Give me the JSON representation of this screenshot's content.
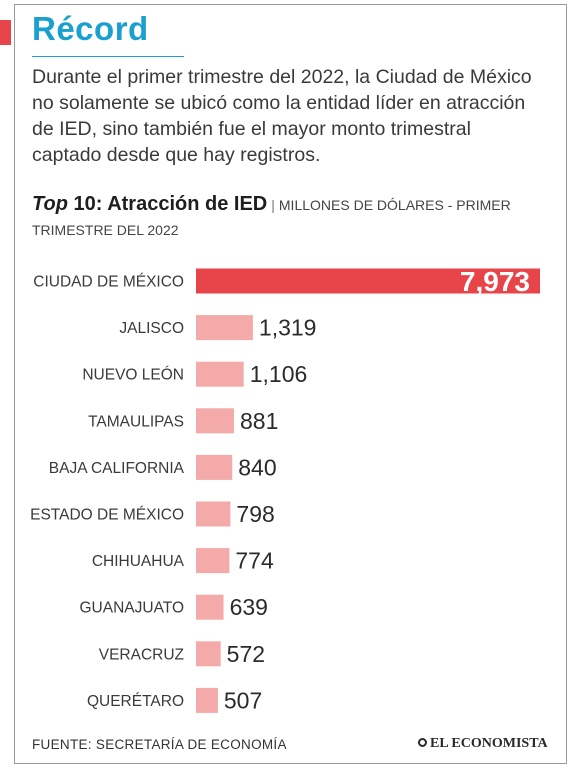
{
  "header": {
    "title": "Récord",
    "accent_color": "#e8454a",
    "title_color": "#1aa0cf"
  },
  "intro_text": "Durante el primer trimestre del 2022, la Ciudad de México no solamente se ubicó como la entidad líder en atracción de IED, sino también fue el mayor monto trimestral captado desde que hay registros.",
  "chart_heading": {
    "top": "Top",
    "rest": "10: Atracción de IED",
    "separator": "|",
    "units": "MILLONES DE DÓLARES - PRIMER TRIMESTRE DEL 2022"
  },
  "chart_data": {
    "type": "bar",
    "orientation": "horizontal",
    "categories": [
      "CIUDAD DE MÉXICO",
      "JALISCO",
      "NUEVO LEÓN",
      "TAMAULIPAS",
      "BAJA CALIFORNIA",
      "ESTADO DE MÉXICO",
      "CHIHUAHUA",
      "GUANAJUATO",
      "VERACRUZ",
      "QUERÉTARO"
    ],
    "values": [
      7973,
      1319,
      1106,
      881,
      840,
      798,
      774,
      639,
      572,
      507
    ],
    "value_labels": [
      "7,973",
      "1,319",
      "1,106",
      "881",
      "840",
      "798",
      "774",
      "639",
      "572",
      "507"
    ],
    "highlight_color": "#e8454a",
    "bar_color": "#f4aaa8",
    "xlim": [
      0,
      7973
    ],
    "grid": false
  },
  "footer": {
    "source": "FUENTE: SECRETARÍA DE ECONOMÍA",
    "brand": "EL ECONOMISTA"
  }
}
